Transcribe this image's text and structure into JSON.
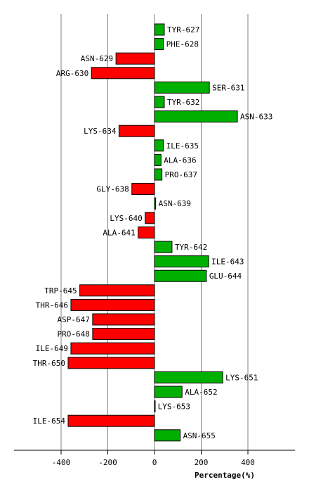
{
  "chart_data": {
    "type": "bar",
    "orientation": "horizontal",
    "title": "",
    "xlabel": "Percentage(%)",
    "ylabel": "",
    "xlim": [
      -600,
      600
    ],
    "xticks": [
      -400,
      -200,
      0,
      200,
      400
    ],
    "tick_labels": [
      "-400",
      "-200",
      "0",
      "200",
      "400"
    ],
    "grid": true,
    "legend": "none",
    "colors": {
      "positive": "#00b000",
      "negative": "#ff0000",
      "grid": "#808080",
      "axis": "#000000"
    },
    "categories": [
      "TYR-627",
      "PHE-628",
      "ASN-629",
      "ARG-630",
      "SER-631",
      "TYR-632",
      "ASN-633",
      "LYS-634",
      "ILE-635",
      "ALA-636",
      "PRO-637",
      "GLY-638",
      "ASN-639",
      "LYS-640",
      "ALA-641",
      "TYR-642",
      "ILE-643",
      "GLU-644",
      "TRP-645",
      "THR-646",
      "ASP-647",
      "PRO-648",
      "ILE-649",
      "THR-650",
      "LYS-651",
      "ALA-652",
      "LYS-653",
      "ILE-654",
      "ASN-655"
    ],
    "values": [
      42,
      38,
      -165,
      -270,
      235,
      42,
      355,
      -152,
      38,
      28,
      32,
      -97,
      5,
      -40,
      -70,
      75,
      232,
      222,
      -320,
      -358,
      -265,
      -265,
      -358,
      -370,
      292,
      118,
      2,
      -370,
      110
    ]
  }
}
